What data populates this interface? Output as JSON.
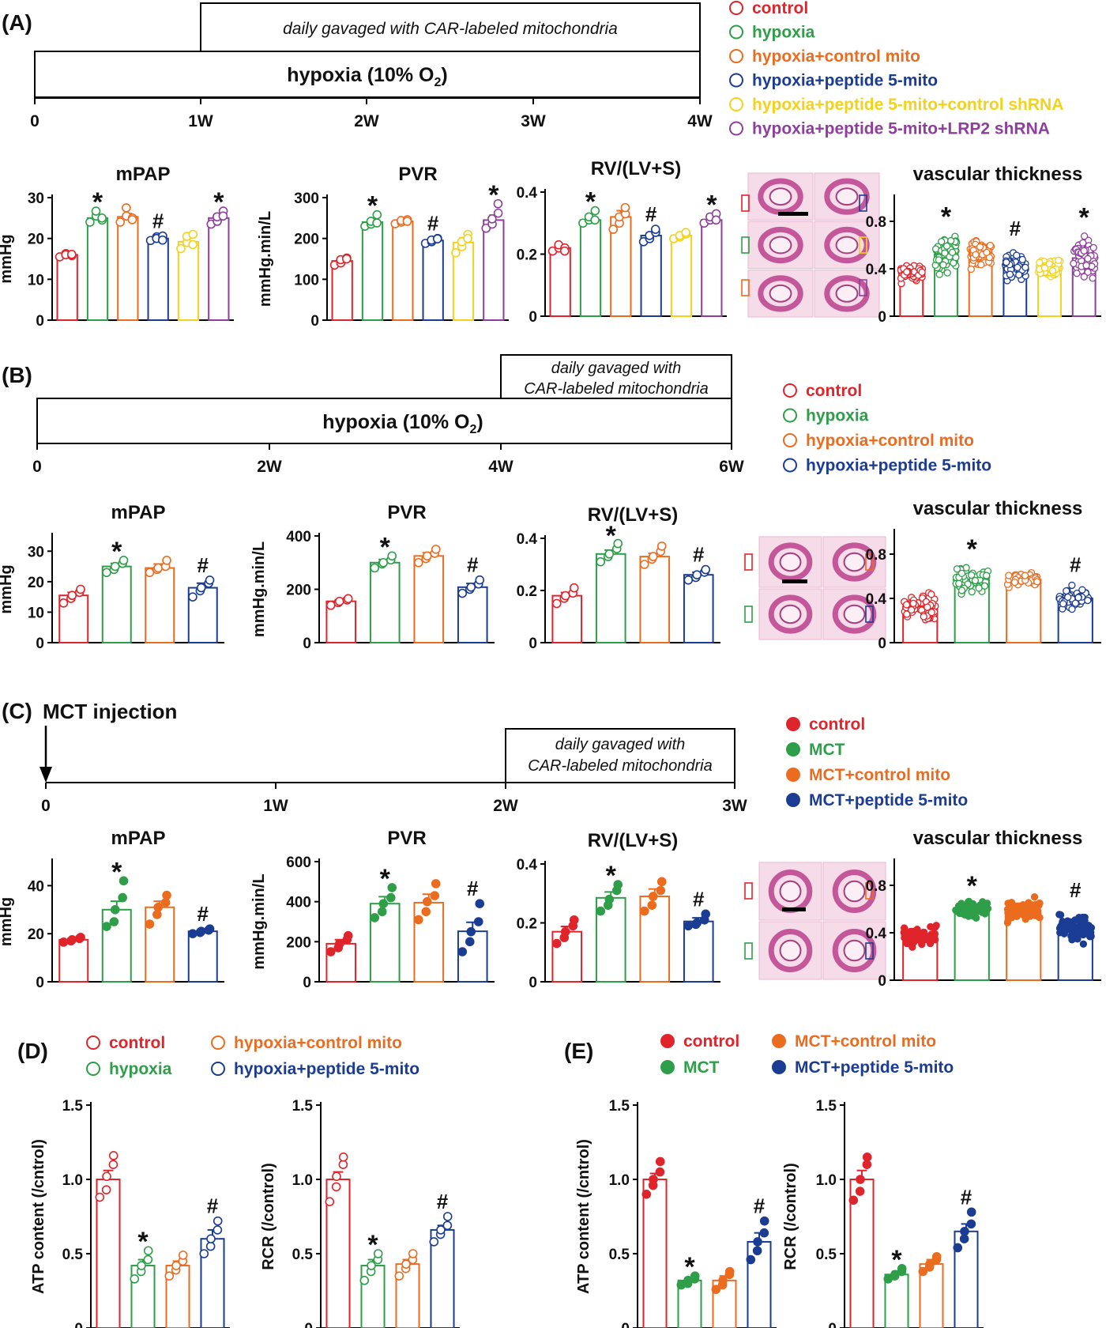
{
  "colors": {
    "control": "#e0242b",
    "hypoxia": "#2e9e49",
    "control_mito": "#ec6c1f",
    "peptide": "#1b3c93",
    "ctrl_shrna": "#f2d21b",
    "lrp2_shrna": "#8d3f9b"
  },
  "axis_titles": {
    "mmhg": "mmHg",
    "pvr_unit": "mmHg.min/L",
    "atp": "ATP content (/cntrol)",
    "rcr": "RCR (/control)"
  },
  "panel_A": {
    "label": "(A)",
    "timeline": {
      "bar_text": "hypoxia (10% O",
      "bar_sub": "2",
      "bar_close": ")",
      "gavage_text": "daily gavaged with CAR-labeled mitochondria",
      "ticks": [
        "0",
        "1W",
        "2W",
        "3W",
        "4W"
      ]
    },
    "legend": [
      "control",
      "hypoxia",
      "hypoxia+control mito",
      "hypoxia+peptide 5-mito",
      "hypoxia+peptide 5-mito+control shRNA",
      "hypoxia+peptide 5-mito+LRP2 shRNA"
    ]
  },
  "panel_B": {
    "label": "(B)",
    "timeline": {
      "bar_text": "hypoxia (10% O",
      "bar_sub": "2",
      "bar_close": ")",
      "gavage_line1": "daily gavaged with",
      "gavage_line2": "CAR-labeled mitochondria",
      "ticks": [
        "0",
        "2W",
        "4W",
        "6W"
      ]
    },
    "legend": [
      "control",
      "hypoxia",
      "hypoxia+control mito",
      "hypoxia+peptide 5-mito"
    ]
  },
  "panel_C": {
    "label": "(C)",
    "timeline": {
      "injection": "MCT injection",
      "gavage_line1": "daily gavaged with",
      "gavage_line2": "CAR-labeled mitochondria",
      "ticks": [
        "0",
        "1W",
        "2W",
        "3W"
      ]
    },
    "legend": [
      "control",
      "MCT",
      "MCT+control mito",
      "MCT+peptide 5-mito"
    ]
  },
  "panel_D": {
    "label": "(D)",
    "legend": [
      "control",
      "hypoxia",
      "hypoxia+control mito",
      "hypoxia+peptide 5-mito"
    ]
  },
  "panel_E": {
    "label": "(E)",
    "legend": [
      "control",
      "MCT",
      "MCT+control mito",
      "MCT+peptide 5-mito"
    ]
  },
  "chart_data": [
    {
      "id": "A_mPAP",
      "type": "bar",
      "title": "mPAP",
      "ylabel": "mmHg",
      "ylim": [
        0,
        30
      ],
      "yticks": [
        "0",
        "10",
        "20",
        "30"
      ],
      "groups": [
        "control",
        "hypoxia",
        "hypoxia+control mito",
        "hypoxia+peptide 5-mito",
        "hypoxia+peptide 5-mito+control shRNA",
        "hypoxia+peptide 5-mito+LRP2 shRNA"
      ],
      "values": [
        16,
        25,
        25.3,
        20,
        19.2,
        25
      ],
      "sem": [
        0.4,
        0.8,
        0.8,
        0.4,
        0.9,
        1.0
      ],
      "points": [
        [
          15.5,
          16.3,
          16,
          15.8,
          16.1
        ],
        [
          24,
          25.5,
          26.7,
          24.5,
          25
        ],
        [
          24,
          25.5,
          27.5,
          25,
          24.6
        ],
        [
          19.5,
          20.4,
          20,
          20.6,
          19.6
        ],
        [
          17.5,
          19,
          20.5,
          21,
          18.5
        ],
        [
          23.5,
          24.2,
          25.3,
          26.7,
          25.5
        ]
      ],
      "annotations": [
        "",
        "*",
        "",
        "#",
        "",
        "*"
      ]
    },
    {
      "id": "A_PVR",
      "type": "bar",
      "title": "PVR",
      "ylabel": "mmHg.min/L",
      "ylim": [
        0,
        300
      ],
      "yticks": [
        "0",
        "100",
        "200",
        "300"
      ],
      "groups": [
        "control",
        "hypoxia",
        "hypoxia+control mito",
        "hypoxia+peptide 5-mito",
        "hypoxia+peptide 5-mito+control shRNA",
        "hypoxia+peptide 5-mito+LRP2 shRNA"
      ],
      "values": [
        145,
        240,
        242,
        195,
        190,
        245
      ],
      "sem": [
        5,
        8,
        4,
        4,
        12,
        12
      ],
      "points": [
        [
          135,
          140,
          148,
          152,
          150
        ],
        [
          230,
          235,
          242,
          258,
          238
        ],
        [
          236,
          240,
          244,
          246,
          242
        ],
        [
          188,
          192,
          196,
          200,
          199
        ],
        [
          165,
          180,
          192,
          210,
          200
        ],
        [
          225,
          235,
          248,
          262,
          285
        ]
      ],
      "annotations": [
        "",
        "*",
        "",
        "#",
        "",
        "*"
      ]
    },
    {
      "id": "A_RV",
      "type": "bar",
      "title": "RV/(LV+S)",
      "ylabel": "",
      "ylim": [
        0,
        0.4
      ],
      "yticks": [
        "0",
        "0.2",
        "0.4"
      ],
      "groups": [
        "control",
        "hypoxia",
        "hypoxia+control mito",
        "hypoxia+peptide 5-mito",
        "hypoxia+peptide 5-mito+control shRNA",
        "hypoxia+peptide 5-mito+LRP2 shRNA"
      ],
      "values": [
        0.22,
        0.31,
        0.32,
        0.26,
        0.26,
        0.31
      ],
      "sem": [
        0.005,
        0.008,
        0.02,
        0.01,
        0.005,
        0.01
      ],
      "points": [
        [
          0.21,
          0.22,
          0.23,
          0.22,
          0.21
        ],
        [
          0.3,
          0.31,
          0.32,
          0.34,
          0.31
        ],
        [
          0.28,
          0.3,
          0.32,
          0.33,
          0.35
        ],
        [
          0.24,
          0.25,
          0.26,
          0.27,
          0.28
        ],
        [
          0.25,
          0.255,
          0.26,
          0.265,
          0.27
        ],
        [
          0.3,
          0.31,
          0.32,
          0.33,
          0.31
        ]
      ],
      "annotations": [
        "",
        "*",
        "",
        "#",
        "",
        "*"
      ]
    },
    {
      "id": "A_VT",
      "type": "bar",
      "title": "vascular thickness",
      "ylabel": "",
      "ylim": [
        0,
        1.0
      ],
      "yticks": [
        "0",
        "0.4",
        "0.8"
      ],
      "groups": [
        "control",
        "hypoxia",
        "hypoxia+control mito",
        "hypoxia+peptide 5-mito",
        "hypoxia+peptide 5-mito+control shRNA",
        "hypoxia+peptide 5-mito+LRP2 shRNA"
      ],
      "values": [
        0.37,
        0.52,
        0.53,
        0.42,
        0.4,
        0.49
      ],
      "spread": [
        0.1,
        0.2,
        0.17,
        0.16,
        0.1,
        0.22
      ],
      "count": 70,
      "annotations": [
        "",
        "*",
        "",
        "#",
        "",
        "*"
      ]
    },
    {
      "id": "B_mPAP",
      "type": "bar",
      "title": "mPAP",
      "ylabel": "mmHg",
      "ylim": [
        0,
        35
      ],
      "yticks": [
        "0",
        "10",
        "20",
        "30"
      ],
      "groups": [
        "control",
        "hypoxia",
        "hypoxia+control mito",
        "hypoxia+peptide 5-mito"
      ],
      "values": [
        15.5,
        25,
        24.5,
        18
      ],
      "sem": [
        1,
        1,
        1.3,
        1.5
      ],
      "points": [
        [
          13,
          14.5,
          15.5,
          16.5,
          17.5
        ],
        [
          23,
          24,
          25,
          26,
          27
        ],
        [
          23,
          24,
          24.5,
          25,
          27
        ],
        [
          15,
          17,
          18,
          19.5,
          20.5
        ]
      ],
      "annotations": [
        "",
        "*",
        "",
        "#"
      ]
    },
    {
      "id": "B_PVR",
      "type": "bar",
      "title": "PVR",
      "ylabel": "mmHg.min/L",
      "ylim": [
        0,
        400
      ],
      "yticks": [
        "0",
        "200",
        "400"
      ],
      "groups": [
        "control",
        "hypoxia",
        "hypoxia+control mito",
        "hypoxia+peptide 5-mito"
      ],
      "values": [
        155,
        300,
        325,
        208
      ],
      "sem": [
        6,
        12,
        12,
        14
      ],
      "points": [
        [
          140,
          150,
          155,
          160,
          165
        ],
        [
          280,
          295,
          300,
          310,
          325
        ],
        [
          300,
          315,
          325,
          335,
          350
        ],
        [
          185,
          200,
          208,
          220,
          235
        ]
      ],
      "annotations": [
        "",
        "*",
        "",
        "#"
      ]
    },
    {
      "id": "B_RV",
      "type": "bar",
      "title": "RV/(LV+S)",
      "ylabel": "",
      "ylim": [
        0,
        0.4
      ],
      "yticks": [
        "0",
        "0.2",
        "0.4"
      ],
      "groups": [
        "control",
        "hypoxia",
        "hypoxia+control mito",
        "hypoxia+peptide 5-mito"
      ],
      "values": [
        0.18,
        0.34,
        0.33,
        0.26
      ],
      "sem": [
        0.012,
        0.015,
        0.012,
        0.01
      ],
      "points": [
        [
          0.15,
          0.17,
          0.18,
          0.19,
          0.21
        ],
        [
          0.31,
          0.33,
          0.34,
          0.36,
          0.38
        ],
        [
          0.3,
          0.32,
          0.33,
          0.35,
          0.37
        ],
        [
          0.24,
          0.25,
          0.26,
          0.27,
          0.28
        ]
      ],
      "annotations": [
        "",
        "*",
        "",
        "#"
      ]
    },
    {
      "id": "B_VT",
      "type": "bar",
      "title": "vascular thickness",
      "ylabel": "",
      "ylim": [
        0,
        1.0
      ],
      "yticks": [
        "0",
        "0.4",
        "0.8"
      ],
      "groups": [
        "control",
        "hypoxia",
        "hypoxia+control mito",
        "hypoxia+peptide 5-mito"
      ],
      "values": [
        0.33,
        0.57,
        0.57,
        0.4
      ],
      "spread": [
        0.18,
        0.16,
        0.1,
        0.14
      ],
      "count": 55,
      "annotations": [
        "",
        "*",
        "",
        "#"
      ]
    },
    {
      "id": "C_mPAP",
      "type": "bar",
      "title": "mPAP",
      "ylabel": "mmHg",
      "ylim": [
        0,
        50
      ],
      "yticks": [
        "0",
        "20",
        "40"
      ],
      "groups": [
        "control",
        "MCT",
        "MCT+control mito",
        "MCT+peptide 5-mito"
      ],
      "values": [
        17.5,
        30,
        31,
        21
      ],
      "sem": [
        0.5,
        3.5,
        2.5,
        0.6
      ],
      "points": [
        [
          16.5,
          17,
          17.5,
          18,
          18.5
        ],
        [
          23,
          25,
          30,
          35,
          42
        ],
        [
          24,
          28,
          31,
          33,
          36
        ],
        [
          20,
          20.5,
          21,
          21.5,
          22
        ]
      ],
      "annotations": [
        "",
        "*",
        "",
        "#"
      ]
    },
    {
      "id": "C_PVR",
      "type": "bar",
      "title": "PVR",
      "ylabel": "mmHg.min/L",
      "ylim": [
        0,
        600
      ],
      "yticks": [
        "0",
        "200",
        "400",
        "600"
      ],
      "groups": [
        "control",
        "MCT",
        "MCT+control mito",
        "MCT+peptide 5-mito"
      ],
      "values": [
        190,
        390,
        395,
        252
      ],
      "sem": [
        20,
        35,
        42,
        45
      ],
      "points": [
        [
          150,
          170,
          190,
          210,
          230
        ],
        [
          320,
          350,
          390,
          420,
          470
        ],
        [
          310,
          350,
          400,
          430,
          490
        ],
        [
          150,
          200,
          250,
          300,
          390
        ]
      ],
      "annotations": [
        "",
        "*",
        "",
        "#"
      ]
    },
    {
      "id": "C_RV",
      "type": "bar",
      "title": "RV/(LV+S)",
      "ylabel": "",
      "ylim": [
        0,
        0.4
      ],
      "yticks": [
        "0",
        "0.2",
        "0.4"
      ],
      "groups": [
        "control",
        "MCT",
        "MCT+control mito",
        "MCT+peptide 5-mito"
      ],
      "values": [
        0.17,
        0.285,
        0.29,
        0.205
      ],
      "sem": [
        0.018,
        0.02,
        0.025,
        0.012
      ],
      "points": [
        [
          0.13,
          0.15,
          0.17,
          0.19,
          0.21
        ],
        [
          0.24,
          0.26,
          0.28,
          0.31,
          0.33
        ],
        [
          0.24,
          0.26,
          0.29,
          0.31,
          0.34
        ],
        [
          0.19,
          0.195,
          0.2,
          0.21,
          0.23
        ]
      ],
      "annotations": [
        "",
        "*",
        "",
        "#"
      ]
    },
    {
      "id": "C_VT",
      "type": "bar",
      "title": "vascular thickness",
      "ylabel": "",
      "ylim": [
        0,
        1.0
      ],
      "yticks": [
        "0",
        "0.4",
        "0.8"
      ],
      "groups": [
        "control",
        "MCT",
        "MCT+control mito",
        "MCT+peptide 5-mito"
      ],
      "values": [
        0.38,
        0.6,
        0.59,
        0.44
      ],
      "spread": [
        0.12,
        0.1,
        0.12,
        0.16
      ],
      "count": 70,
      "annotations": [
        "",
        "*",
        "",
        "#"
      ]
    },
    {
      "id": "D_ATP",
      "type": "bar",
      "title": "",
      "ylabel": "ATP content (/cntrol)",
      "ylim": [
        0,
        1.5
      ],
      "yticks": [
        "0",
        "0.5",
        "1.0",
        "1.5"
      ],
      "groups": [
        "control",
        "hypoxia",
        "hypoxia+control mito",
        "hypoxia+peptide 5-mito"
      ],
      "values": [
        1.0,
        0.42,
        0.42,
        0.6
      ],
      "sem": [
        0.06,
        0.04,
        0.03,
        0.06
      ],
      "points": [
        [
          0.88,
          0.93,
          1.02,
          1.1,
          1.16
        ],
        [
          0.33,
          0.38,
          0.42,
          0.46,
          0.52
        ],
        [
          0.35,
          0.39,
          0.42,
          0.45,
          0.49
        ],
        [
          0.5,
          0.55,
          0.6,
          0.66,
          0.72
        ]
      ],
      "annotations": [
        "",
        "*",
        "",
        "#"
      ]
    },
    {
      "id": "D_RCR",
      "type": "bar",
      "title": "",
      "ylabel": "RCR (/control)",
      "ylim": [
        0,
        1.5
      ],
      "yticks": [
        "0",
        "0.5",
        "1.0",
        "1.5"
      ],
      "groups": [
        "control",
        "hypoxia",
        "hypoxia+control mito",
        "hypoxia+peptide 5-mito"
      ],
      "values": [
        1.0,
        0.42,
        0.43,
        0.66
      ],
      "sem": [
        0.05,
        0.04,
        0.03,
        0.03
      ],
      "points": [
        [
          0.85,
          0.95,
          1.02,
          1.1,
          1.15
        ],
        [
          0.32,
          0.38,
          0.42,
          0.46,
          0.5
        ],
        [
          0.35,
          0.4,
          0.43,
          0.46,
          0.5
        ],
        [
          0.58,
          0.63,
          0.66,
          0.69,
          0.75
        ]
      ],
      "annotations": [
        "",
        "*",
        "",
        "#"
      ]
    },
    {
      "id": "E_ATP",
      "type": "bar",
      "title": "",
      "ylabel": "ATP content (/cntrol)",
      "ylim": [
        0,
        1.5
      ],
      "yticks": [
        "0",
        "0.5",
        "1.0",
        "1.5"
      ],
      "groups": [
        "control",
        "MCT",
        "MCT+control mito",
        "MCT+peptide 5-mito"
      ],
      "values": [
        1.0,
        0.32,
        0.32,
        0.58
      ],
      "sem": [
        0.04,
        0.02,
        0.03,
        0.06
      ],
      "points": [
        [
          0.9,
          0.96,
          1.0,
          1.05,
          1.12
        ],
        [
          0.29,
          0.3,
          0.32,
          0.33,
          0.35
        ],
        [
          0.26,
          0.29,
          0.32,
          0.36,
          0.38
        ],
        [
          0.46,
          0.52,
          0.58,
          0.64,
          0.72
        ]
      ],
      "annotations": [
        "",
        "*",
        "",
        "#"
      ]
    },
    {
      "id": "E_RCR",
      "type": "bar",
      "title": "",
      "ylabel": "RCR (/control)",
      "ylim": [
        0,
        1.5
      ],
      "yticks": [
        "0",
        "0.5",
        "1.0",
        "1.5"
      ],
      "groups": [
        "control",
        "MCT",
        "MCT+control mito",
        "MCT+peptide 5-mito"
      ],
      "values": [
        1.0,
        0.36,
        0.43,
        0.65
      ],
      "sem": [
        0.06,
        0.02,
        0.03,
        0.05
      ],
      "points": [
        [
          0.86,
          0.92,
          1.0,
          1.1,
          1.15
        ],
        [
          0.33,
          0.35,
          0.36,
          0.38,
          0.4
        ],
        [
          0.38,
          0.41,
          0.43,
          0.46,
          0.48
        ],
        [
          0.54,
          0.6,
          0.65,
          0.7,
          0.78
        ]
      ],
      "annotations": [
        "",
        "*",
        "",
        "#"
      ]
    }
  ]
}
